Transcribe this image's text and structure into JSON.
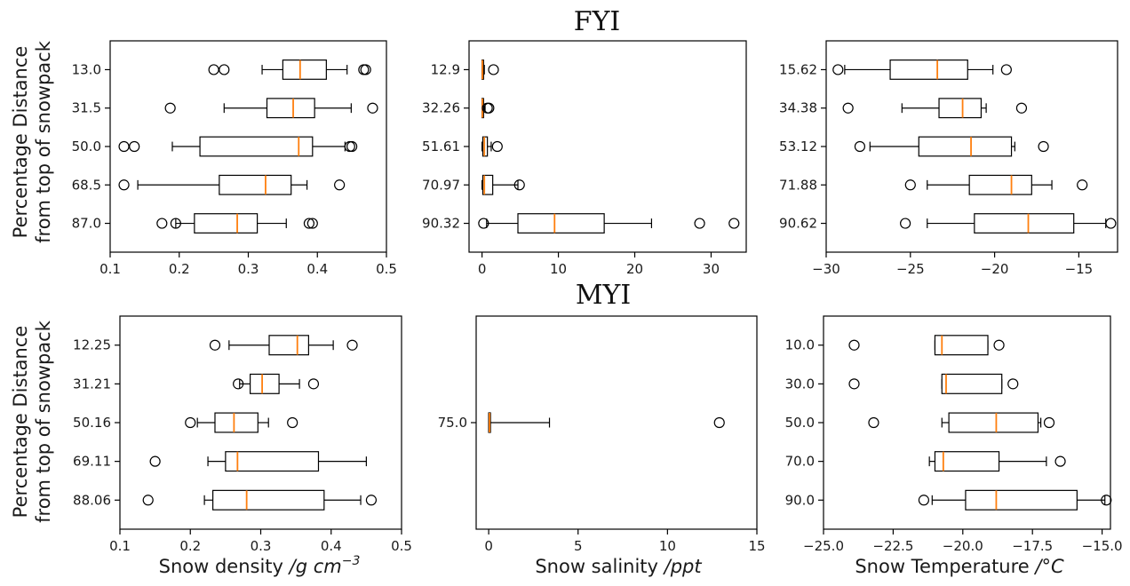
{
  "figure": {
    "row_titles": [
      "FYI",
      "MYI"
    ],
    "ylabel_lines": [
      "Percentage Distance",
      "from top of snowpack"
    ],
    "xlabels": {
      "density": {
        "prefix": "Snow density ",
        "unit": "/g cm",
        "sup": "−3"
      },
      "salinity": {
        "prefix": "Snow salinity ",
        "unit": "/ppt",
        "sup": ""
      },
      "temperature": {
        "prefix": "Snow Temperature ",
        "unit": "/°C",
        "sup": ""
      }
    }
  },
  "chart_data": [
    {
      "type": "boxplot",
      "orientation": "horizontal",
      "row": "FYI",
      "variable": "density",
      "xlim": [
        0.1,
        0.5
      ],
      "xticks": [
        0.1,
        0.2,
        0.3,
        0.4,
        0.5
      ],
      "xtick_labels": [
        "0.1",
        "0.2",
        "0.3",
        "0.4",
        "0.5"
      ],
      "categories": [
        "13.0",
        "31.5",
        "50.0",
        "68.5",
        "87.0"
      ],
      "boxes": [
        {
          "whislo": 0.32,
          "q1": 0.35,
          "med": 0.375,
          "q3": 0.413,
          "whishi": 0.443,
          "fliers": [
            0.25,
            0.265,
            0.467,
            0.47
          ]
        },
        {
          "whislo": 0.265,
          "q1": 0.327,
          "med": 0.365,
          "q3": 0.396,
          "whishi": 0.449,
          "fliers": [
            0.187,
            0.48
          ]
        },
        {
          "whislo": 0.19,
          "q1": 0.23,
          "med": 0.373,
          "q3": 0.393,
          "whishi": 0.44,
          "fliers": [
            0.12,
            0.135,
            0.447,
            0.45
          ]
        },
        {
          "whislo": 0.14,
          "q1": 0.258,
          "med": 0.325,
          "q3": 0.362,
          "whishi": 0.385,
          "fliers": [
            0.12,
            0.432
          ]
        },
        {
          "whislo": 0.195,
          "q1": 0.222,
          "med": 0.284,
          "q3": 0.313,
          "whishi": 0.355,
          "fliers": [
            0.175,
            0.195,
            0.388,
            0.393
          ]
        }
      ]
    },
    {
      "type": "boxplot",
      "orientation": "horizontal",
      "row": "FYI",
      "variable": "salinity",
      "xlim": [
        -1.7,
        34.6
      ],
      "xticks": [
        0,
        10,
        20,
        30
      ],
      "xtick_labels": [
        "0",
        "10",
        "20",
        "30"
      ],
      "categories": [
        "12.9",
        "32.26",
        "51.61",
        "70.97",
        "90.32"
      ],
      "boxes": [
        {
          "whislo": 0,
          "q1": 0,
          "med": 0.05,
          "q3": 0.2,
          "whishi": 0.3,
          "fliers": [
            1.5
          ]
        },
        {
          "whislo": 0,
          "q1": 0,
          "med": 0.05,
          "q3": 0.2,
          "whishi": 0.4,
          "fliers": [
            0.7,
            0.9
          ]
        },
        {
          "whislo": 0,
          "q1": 0.1,
          "med": 0.3,
          "q3": 0.7,
          "whishi": 1.2,
          "fliers": [
            2.0
          ]
        },
        {
          "whislo": 0,
          "q1": 0.1,
          "med": 0.3,
          "q3": 1.4,
          "whishi": 4.7,
          "fliers": [
            4.9
          ]
        },
        {
          "whislo": 0.6,
          "q1": 4.7,
          "med": 9.5,
          "q3": 16.0,
          "whishi": 22.2,
          "fliers": [
            0.2,
            28.5,
            33.0
          ]
        }
      ]
    },
    {
      "type": "boxplot",
      "orientation": "horizontal",
      "row": "FYI",
      "variable": "temperature",
      "xlim": [
        -30.0,
        -12.7
      ],
      "xticks": [
        -30,
        -25,
        -20,
        -15
      ],
      "xtick_labels": [
        "−30",
        "−25",
        "−20",
        "−15"
      ],
      "categories": [
        "15.62",
        "34.38",
        "53.12",
        "71.88",
        "90.62"
      ],
      "boxes": [
        {
          "whislo": -28.9,
          "q1": -26.2,
          "med": -23.4,
          "q3": -21.6,
          "whishi": -20.1,
          "fliers": [
            -29.3,
            -19.3
          ]
        },
        {
          "whislo": -25.5,
          "q1": -23.3,
          "med": -21.9,
          "q3": -20.8,
          "whishi": -20.5,
          "fliers": [
            -28.7,
            -18.4
          ]
        },
        {
          "whislo": -27.4,
          "q1": -24.5,
          "med": -21.4,
          "q3": -19.0,
          "whishi": -18.8,
          "fliers": [
            -28.0,
            -17.1
          ]
        },
        {
          "whislo": -24.0,
          "q1": -21.5,
          "med": -19.0,
          "q3": -17.8,
          "whishi": -16.6,
          "fliers": [
            -25.0,
            -14.8
          ]
        },
        {
          "whislo": -24.0,
          "q1": -21.2,
          "med": -18.0,
          "q3": -15.3,
          "whishi": -13.4,
          "fliers": [
            -25.3,
            -13.1
          ]
        }
      ]
    },
    {
      "type": "boxplot",
      "orientation": "horizontal",
      "row": "MYI",
      "variable": "density",
      "xlim": [
        0.1,
        0.5
      ],
      "xticks": [
        0.1,
        0.2,
        0.3,
        0.4,
        0.5
      ],
      "xtick_labels": [
        "0.1",
        "0.2",
        "0.3",
        "0.4",
        "0.5"
      ],
      "categories": [
        "12.25",
        "31.21",
        "50.16",
        "69.11",
        "88.06"
      ],
      "boxes": [
        {
          "whislo": 0.255,
          "q1": 0.312,
          "med": 0.352,
          "q3": 0.368,
          "whishi": 0.403,
          "fliers": [
            0.235,
            0.43
          ]
        },
        {
          "whislo": 0.27,
          "q1": 0.285,
          "med": 0.302,
          "q3": 0.326,
          "whishi": 0.355,
          "fliers": [
            0.268,
            0.375
          ]
        },
        {
          "whislo": 0.21,
          "q1": 0.235,
          "med": 0.262,
          "q3": 0.296,
          "whishi": 0.311,
          "fliers": [
            0.2,
            0.345
          ]
        },
        {
          "whislo": 0.225,
          "q1": 0.25,
          "med": 0.267,
          "q3": 0.382,
          "whishi": 0.45,
          "fliers": [
            0.15
          ]
        },
        {
          "whislo": 0.22,
          "q1": 0.232,
          "med": 0.28,
          "q3": 0.39,
          "whishi": 0.442,
          "fliers": [
            0.14,
            0.457
          ]
        }
      ]
    },
    {
      "type": "boxplot",
      "orientation": "horizontal",
      "row": "MYI",
      "variable": "salinity",
      "xlim": [
        -0.7,
        15.0
      ],
      "xticks": [
        0,
        5,
        10,
        15
      ],
      "xtick_labels": [
        "0",
        "5",
        "10",
        "15"
      ],
      "categories": [
        "75.0"
      ],
      "boxes": [
        {
          "whislo": 0.0,
          "q1": 0.0,
          "med": 0.05,
          "q3": 0.1,
          "whishi": 3.4,
          "fliers": [
            12.9
          ]
        }
      ]
    },
    {
      "type": "boxplot",
      "orientation": "horizontal",
      "row": "MYI",
      "variable": "temperature",
      "xlim": [
        -25.0,
        -14.7
      ],
      "xticks": [
        -25.0,
        -22.5,
        -20.0,
        -17.5,
        -15.0
      ],
      "xtick_labels": [
        "−25.0",
        "−22.5",
        "−20.0",
        "−17.5",
        "−15.0"
      ],
      "categories": [
        "10.0",
        "30.0",
        "50.0",
        "70.0",
        "90.0"
      ],
      "boxes": [
        {
          "whislo": -21.0,
          "q1": -21.0,
          "med": -20.75,
          "q3": -19.1,
          "whishi": -19.1,
          "fliers": [
            -23.9,
            -18.7
          ]
        },
        {
          "whislo": -20.75,
          "q1": -20.75,
          "med": -20.6,
          "q3": -18.6,
          "whishi": -18.6,
          "fliers": [
            -23.9,
            -18.2
          ]
        },
        {
          "whislo": -20.75,
          "q1": -20.5,
          "med": -18.8,
          "q3": -17.3,
          "whishi": -17.2,
          "fliers": [
            -23.2,
            -16.9
          ]
        },
        {
          "whislo": -21.2,
          "q1": -21.0,
          "med": -20.7,
          "q3": -18.7,
          "whishi": -17.0,
          "fliers": [
            -16.5
          ]
        },
        {
          "whislo": -21.1,
          "q1": -19.9,
          "med": -18.8,
          "q3": -15.9,
          "whishi": -14.9,
          "fliers": [
            -21.4,
            -14.85
          ]
        }
      ]
    }
  ]
}
